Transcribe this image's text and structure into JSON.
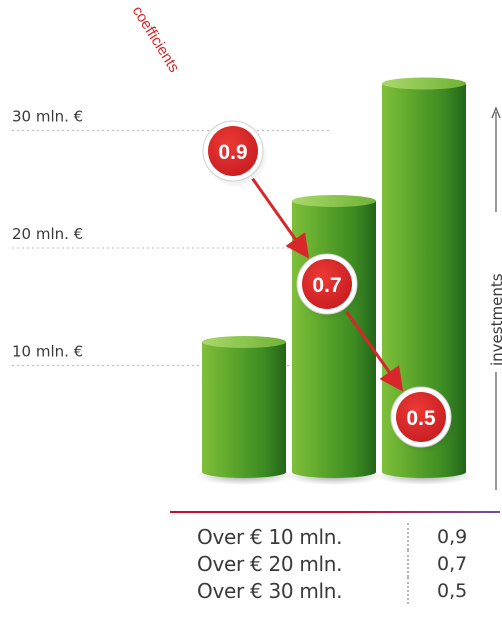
{
  "chart_data": {
    "type": "bar",
    "ylabel": "investments",
    "coefficients_label": "coefficients",
    "y_ticks": [
      {
        "value": 10,
        "label": "10 mln. €"
      },
      {
        "value": 20,
        "label": "20 mln. €"
      },
      {
        "value": 30,
        "label": "30 mln. €"
      }
    ],
    "ylim": [
      0,
      30
    ],
    "bar_values": [
      12,
      24,
      34
    ],
    "coefficients": [
      {
        "value": 0.9,
        "label": "0.9"
      },
      {
        "value": 0.7,
        "label": "0.7"
      },
      {
        "value": 0.5,
        "label": "0.5"
      }
    ],
    "colors": {
      "bar_light": "#8cc63f",
      "bar_dark": "#2e7d1f",
      "badge": "#d8262b",
      "accent_line": "#c8102e"
    }
  },
  "table": {
    "rows": [
      {
        "label": "Over € 10 mln.",
        "value": "0,9"
      },
      {
        "label": "Over € 20 mln.",
        "value": "0,7"
      },
      {
        "label": "Over € 30 mln.",
        "value": "0,5"
      }
    ]
  }
}
